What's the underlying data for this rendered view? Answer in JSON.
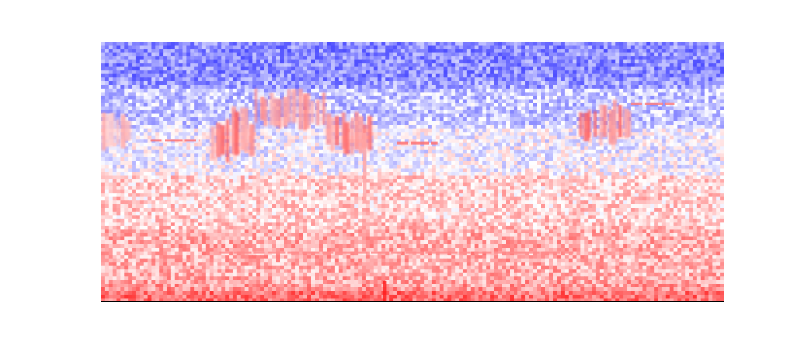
{
  "chart_data": {
    "type": "heatmap",
    "title": "",
    "xlabel": "",
    "ylabel": "",
    "axes_ticks_visible": false,
    "colormap": "bwr",
    "colors": {
      "low": "#0000ff",
      "mid": "#ffffff",
      "high": "#ff0000",
      "frame": "#000000"
    },
    "bands_by_height_fraction": [
      {
        "from": 0.0,
        "to": 0.18,
        "level": -0.45
      },
      {
        "from": 0.18,
        "to": 0.34,
        "level": -0.22
      },
      {
        "from": 0.34,
        "to": 0.52,
        "level": -0.05
      },
      {
        "from": 0.52,
        "to": 0.72,
        "level": 0.18
      },
      {
        "from": 0.72,
        "to": 0.96,
        "level": 0.3
      },
      {
        "from": 0.96,
        "to": 1.0,
        "level": 0.55
      }
    ],
    "features": [
      {
        "kind": "burst",
        "x_from": 0.175,
        "x_to": 0.245,
        "y_from": 0.25,
        "y_to": 0.47,
        "intensity": 0.55
      },
      {
        "kind": "burst",
        "x_from": 0.245,
        "x_to": 0.36,
        "y_from": 0.18,
        "y_to": 0.34,
        "intensity": 0.45
      },
      {
        "kind": "burst",
        "x_from": 0.36,
        "x_to": 0.435,
        "y_from": 0.26,
        "y_to": 0.44,
        "intensity": 0.5
      },
      {
        "kind": "burst",
        "x_from": 0.765,
        "x_to": 0.85,
        "y_from": 0.22,
        "y_to": 0.4,
        "intensity": 0.55
      },
      {
        "kind": "burst",
        "x_from": 0.0,
        "x_to": 0.045,
        "y_from": 0.26,
        "y_to": 0.42,
        "intensity": 0.3
      },
      {
        "kind": "streak",
        "x_from": 0.08,
        "x_to": 0.16,
        "y": 0.38,
        "intensity": 0.55
      },
      {
        "kind": "streak",
        "x_from": 0.475,
        "x_to": 0.54,
        "y": 0.39,
        "intensity": 0.55
      },
      {
        "kind": "streak",
        "x_from": 0.85,
        "x_to": 0.92,
        "y": 0.24,
        "intensity": 0.5
      },
      {
        "kind": "streak",
        "x_from": 0.19,
        "x_to": 0.76,
        "y": 0.81,
        "intensity": 0.45
      },
      {
        "kind": "spike",
        "x": 0.455,
        "y_from": 0.92,
        "y_to": 1.0,
        "intensity": 0.9
      },
      {
        "kind": "spike",
        "x": 0.423,
        "y_from": 0.35,
        "y_to": 0.62,
        "intensity": 0.35
      }
    ]
  }
}
